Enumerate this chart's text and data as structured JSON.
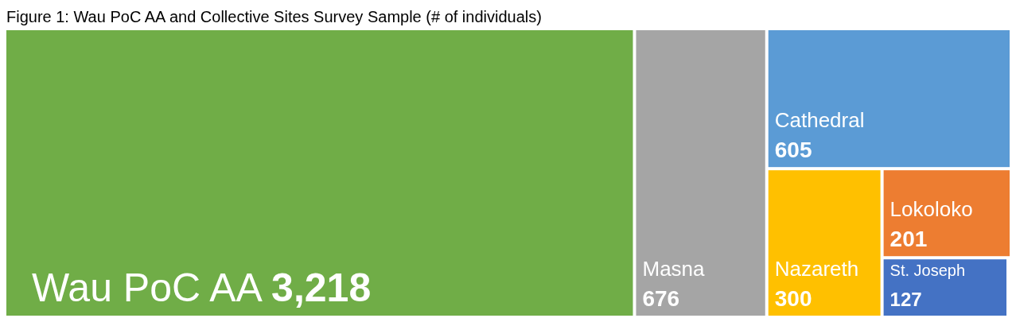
{
  "chart_data": {
    "type": "other",
    "title": "Figure 1: Wau PoC AA and Collective Sites Survey Sample (# of individuals)",
    "categories": [
      "Wau PoC AA",
      "Masna",
      "Cathedral",
      "Nazareth",
      "Lokoloko",
      "St. Joseph"
    ],
    "values": [
      3218,
      676,
      605,
      300,
      201,
      127
    ],
    "value_labels": [
      "3,218",
      "676",
      "605",
      "300",
      "201",
      "127"
    ],
    "colors": [
      "#70ad47",
      "#a5a5a5",
      "#5b9bd5",
      "#ffc000",
      "#ed7d31",
      "#4472c4"
    ]
  }
}
